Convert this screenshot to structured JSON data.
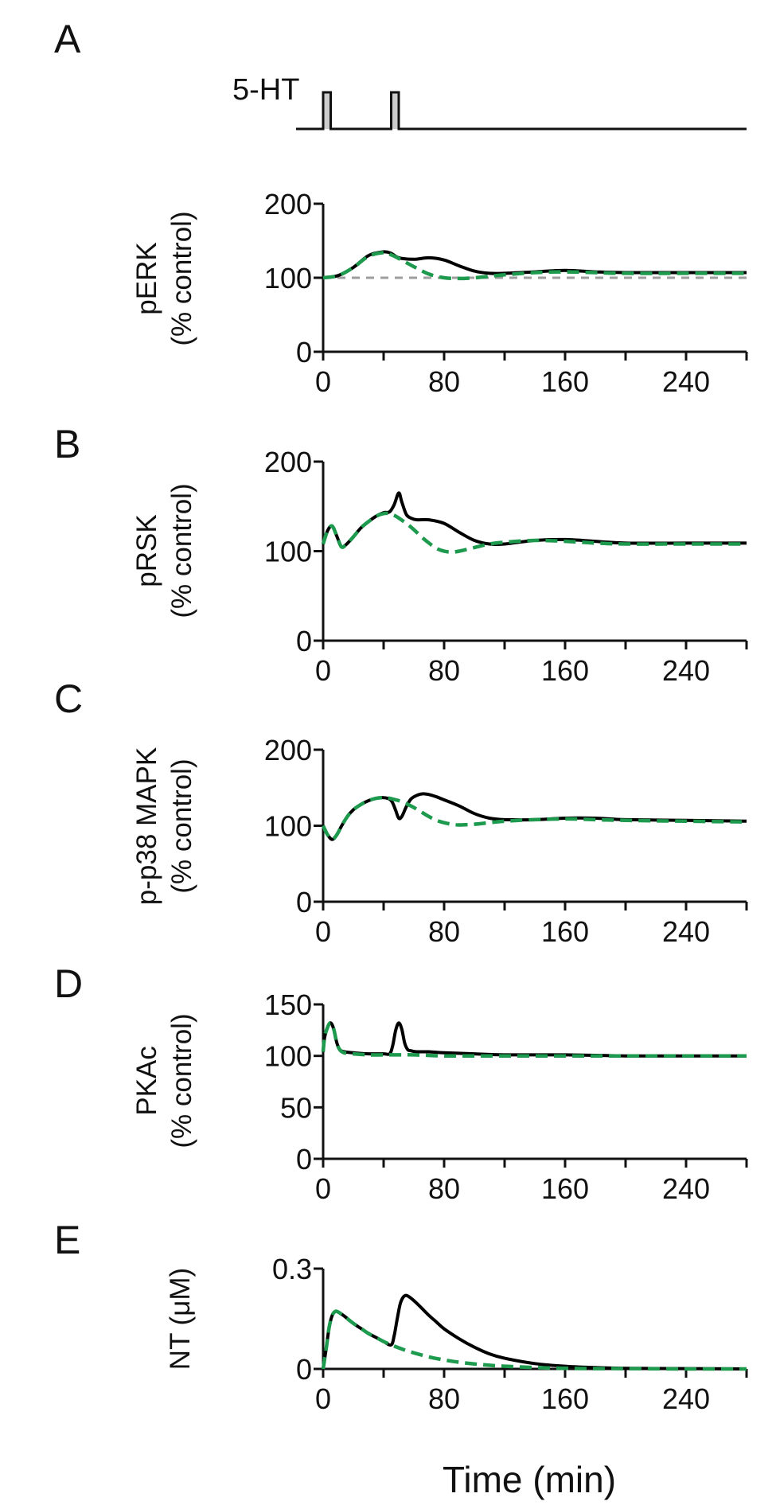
{
  "stimulus": {
    "label": "5-HT",
    "pulses": [
      {
        "start": 0,
        "end": 5
      },
      {
        "start": 45,
        "end": 50
      }
    ]
  },
  "colors": {
    "control": "#000000",
    "model": "#1e9a4e",
    "reference": "#9e9e9e",
    "pulse_fill": "#cccccc"
  },
  "chart_data": [
    {
      "type": "line",
      "panel": "A",
      "ylabel_lines": [
        "pERK",
        "(% control)"
      ],
      "xlim": [
        0,
        280
      ],
      "ylim": [
        0,
        200
      ],
      "xticks": [
        0,
        80,
        160,
        240
      ],
      "yticks": [
        0,
        100,
        200
      ],
      "reference_y": 100,
      "series": [
        {
          "style": "solid",
          "x": [
            0,
            10,
            20,
            30,
            40,
            45,
            50,
            60,
            70,
            80,
            90,
            100,
            110,
            120,
            140,
            160,
            180,
            200,
            240,
            280
          ],
          "y": [
            100,
            103,
            114,
            130,
            135,
            133,
            127,
            125,
            127,
            124,
            116,
            109,
            106,
            106,
            108,
            110,
            108,
            107,
            107,
            107
          ]
        },
        {
          "style": "dashed",
          "x": [
            0,
            10,
            20,
            30,
            40,
            45,
            50,
            60,
            70,
            80,
            90,
            100,
            110,
            120,
            140,
            160,
            180,
            200,
            240,
            280
          ],
          "y": [
            100,
            103,
            114,
            129,
            134,
            131,
            126,
            115,
            105,
            100,
            99,
            100,
            102,
            104,
            107,
            108,
            107,
            106,
            106,
            106
          ]
        }
      ]
    },
    {
      "type": "line",
      "panel": "B",
      "ylabel_lines": [
        "pRSK",
        "(% control)"
      ],
      "xlim": [
        0,
        280
      ],
      "ylim": [
        0,
        200
      ],
      "xticks": [
        0,
        80,
        160,
        240
      ],
      "yticks": [
        0,
        100,
        200
      ],
      "series": [
        {
          "style": "solid",
          "x": [
            0,
            3,
            6,
            9,
            12,
            15,
            20,
            25,
            30,
            35,
            40,
            44,
            47,
            50,
            52,
            55,
            58,
            62,
            70,
            80,
            90,
            100,
            110,
            120,
            140,
            160,
            180,
            200,
            240,
            280
          ],
          "y": [
            108,
            123,
            128,
            117,
            105,
            107,
            116,
            126,
            133,
            139,
            143,
            144,
            152,
            165,
            155,
            141,
            137,
            135,
            135,
            131,
            121,
            112,
            108,
            108,
            112,
            113,
            111,
            109,
            109,
            109
          ]
        },
        {
          "style": "dashed",
          "x": [
            0,
            3,
            6,
            9,
            12,
            15,
            20,
            25,
            30,
            35,
            40,
            44,
            47,
            50,
            55,
            60,
            65,
            70,
            75,
            80,
            85,
            90,
            100,
            110,
            120,
            140,
            160,
            180,
            200,
            240,
            280
          ],
          "y": [
            108,
            123,
            128,
            117,
            105,
            107,
            116,
            126,
            133,
            139,
            142,
            142,
            140,
            137,
            131,
            124,
            116,
            109,
            103,
            100,
            99,
            100,
            104,
            108,
            110,
            112,
            111,
            109,
            108,
            108,
            108
          ]
        }
      ]
    },
    {
      "type": "line",
      "panel": "C",
      "ylabel_lines": [
        "p-p38 MAPK",
        "(% control)"
      ],
      "xlim": [
        0,
        280
      ],
      "ylim": [
        0,
        200
      ],
      "xticks": [
        0,
        80,
        160,
        240
      ],
      "yticks": [
        0,
        100,
        200
      ],
      "series": [
        {
          "style": "solid",
          "x": [
            0,
            3,
            6,
            9,
            12,
            16,
            20,
            25,
            30,
            35,
            40,
            44,
            46,
            48,
            50,
            52,
            55,
            58,
            62,
            66,
            70,
            75,
            80,
            90,
            100,
            110,
            120,
            140,
            160,
            180,
            200,
            240,
            280
          ],
          "y": [
            100,
            88,
            82,
            88,
            99,
            112,
            121,
            128,
            133,
            136,
            137,
            135,
            130,
            120,
            110,
            112,
            125,
            135,
            140,
            142,
            141,
            138,
            134,
            126,
            116,
            110,
            108,
            108,
            110,
            110,
            108,
            107,
            106
          ]
        },
        {
          "style": "dashed",
          "x": [
            0,
            3,
            6,
            9,
            12,
            16,
            20,
            25,
            30,
            35,
            40,
            44,
            48,
            50,
            55,
            60,
            65,
            70,
            75,
            80,
            85,
            90,
            100,
            110,
            120,
            140,
            160,
            180,
            200,
            240,
            280
          ],
          "y": [
            100,
            88,
            82,
            88,
            99,
            112,
            121,
            128,
            133,
            136,
            137,
            136,
            134,
            133,
            129,
            124,
            118,
            112,
            107,
            104,
            102,
            101,
            102,
            104,
            106,
            108,
            109,
            108,
            107,
            106,
            105
          ]
        }
      ]
    },
    {
      "type": "line",
      "panel": "D",
      "ylabel_lines": [
        "PKAc",
        "(% control)"
      ],
      "xlim": [
        0,
        280
      ],
      "ylim": [
        0,
        150
      ],
      "xticks": [
        0,
        80,
        160,
        240
      ],
      "yticks": [
        0,
        50,
        100,
        150
      ],
      "series": [
        {
          "style": "solid",
          "x": [
            0,
            1,
            3,
            5,
            7,
            9,
            11,
            14,
            20,
            30,
            40,
            44,
            46,
            48,
            50,
            52,
            54,
            56,
            58,
            62,
            70,
            80,
            100,
            120,
            160,
            200,
            240,
            280
          ],
          "y": [
            104,
            118,
            128,
            132,
            126,
            113,
            106,
            104,
            103,
            102,
            102,
            102,
            110,
            125,
            132,
            126,
            112,
            106,
            105,
            104,
            104,
            103,
            102,
            101,
            101,
            100,
            100,
            100
          ]
        },
        {
          "style": "dashed",
          "x": [
            0,
            1,
            3,
            5,
            7,
            9,
            11,
            14,
            20,
            30,
            40,
            50,
            60,
            80,
            100,
            120,
            160,
            200,
            240,
            280
          ],
          "y": [
            104,
            118,
            128,
            132,
            126,
            113,
            106,
            103,
            102,
            101,
            101,
            101,
            101,
            100,
            100,
            100,
            100,
            100,
            100,
            100
          ]
        }
      ]
    },
    {
      "type": "line",
      "panel": "E",
      "ylabel_lines": [
        "NT (μM)"
      ],
      "xlim": [
        0,
        280
      ],
      "ylim": [
        0,
        0.3
      ],
      "xticks": [
        0,
        80,
        160,
        240
      ],
      "yticks": [
        0,
        0.3
      ],
      "series": [
        {
          "style": "solid",
          "x": [
            0,
            2,
            4,
            6,
            8,
            10,
            14,
            18,
            22,
            26,
            30,
            35,
            40,
            45,
            47,
            49,
            51,
            53,
            55,
            58,
            62,
            66,
            70,
            75,
            80,
            90,
            100,
            110,
            120,
            140,
            160,
            180,
            200,
            240,
            280
          ],
          "y": [
            0,
            0.06,
            0.125,
            0.16,
            0.172,
            0.17,
            0.158,
            0.143,
            0.13,
            0.118,
            0.106,
            0.094,
            0.082,
            0.072,
            0.1,
            0.15,
            0.195,
            0.215,
            0.22,
            0.212,
            0.196,
            0.178,
            0.16,
            0.14,
            0.12,
            0.09,
            0.065,
            0.045,
            0.032,
            0.016,
            0.008,
            0.004,
            0.002,
            0.001,
            0
          ]
        },
        {
          "style": "dashed",
          "x": [
            0,
            2,
            4,
            6,
            8,
            10,
            14,
            18,
            22,
            26,
            30,
            35,
            40,
            45,
            50,
            55,
            60,
            70,
            80,
            90,
            100,
            110,
            120,
            140,
            160,
            180,
            200,
            240,
            280
          ],
          "y": [
            0,
            0.06,
            0.125,
            0.16,
            0.172,
            0.17,
            0.158,
            0.143,
            0.13,
            0.118,
            0.106,
            0.094,
            0.082,
            0.072,
            0.063,
            0.055,
            0.048,
            0.036,
            0.027,
            0.02,
            0.015,
            0.011,
            0.008,
            0.004,
            0.002,
            0.001,
            0.001,
            0,
            0
          ]
        }
      ]
    }
  ],
  "x_axis_title": "Time (min)"
}
